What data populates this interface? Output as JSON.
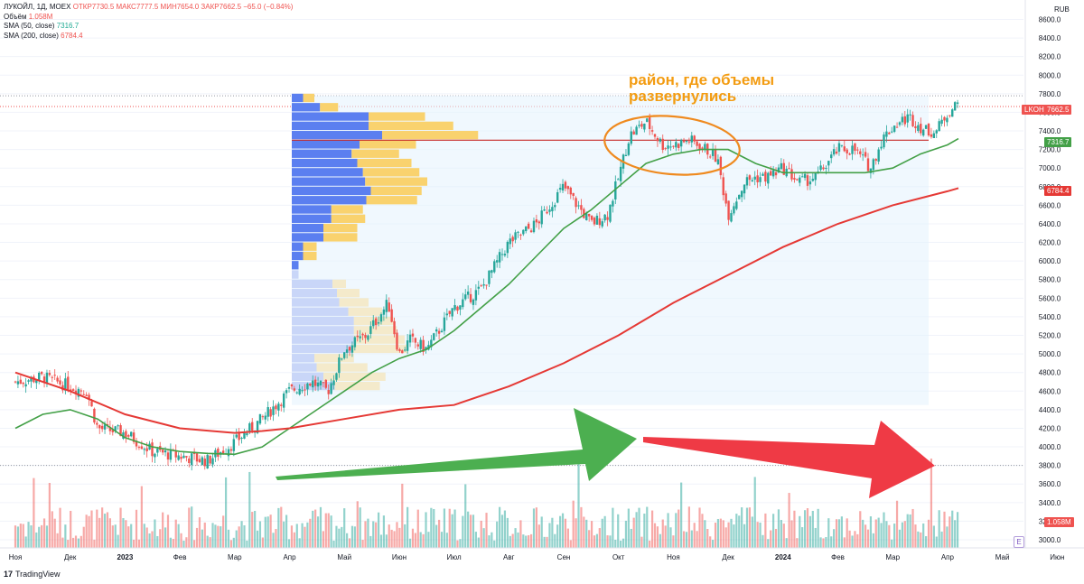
{
  "legend": {
    "symbol": "ЛУКОЙЛ, 1Д, MOEX",
    "ohlc": "ОТКР7730.5  МАКС7777.5  МИН7654.0  ЗАКР7662.5  −65.0 (−0.84%)",
    "volume_label": "Объём",
    "volume_value": "1.058M",
    "sma50_label": "SMA (50, close)",
    "sma50_value": "7316.7",
    "sma200_label": "SMA (200, close)",
    "sma200_value": "6784.4"
  },
  "currency": "RUB",
  "annotation": {
    "line1": "район, где объемы",
    "line2": "развернулись"
  },
  "branding": {
    "mark": "17",
    "name": "TradingView"
  },
  "e_button": "E",
  "price_labels": {
    "ticker": "LKOH",
    "last": "7662.5",
    "sma50": "7316.7",
    "sma200": "6784.4",
    "volume": "1.058M"
  },
  "colors": {
    "up": "#26a69a",
    "down": "#ef5350",
    "sma50": "#43a047",
    "sma200": "#e53935",
    "annotation": "#f39c12",
    "green_arrow": "#4caf50",
    "red_arrow": "#ef3a45",
    "profile_up": "#5b7ff0",
    "profile_down": "#f9d26e"
  },
  "chart_data": {
    "type": "candlestick",
    "title": "ЛУКОЙЛ, 1Д, MOEX",
    "y_axis": {
      "ticks": [
        3000,
        3200,
        3400,
        3600,
        3800,
        4000,
        4200,
        4400,
        4600,
        4800,
        5000,
        5200,
        5400,
        5600,
        5800,
        6000,
        6200,
        6400,
        6600,
        6800,
        7000,
        7200,
        7400,
        7600,
        7800,
        8000,
        8200,
        8400,
        8600
      ],
      "tick_labels": [
        "3000.0",
        "3200.0",
        "3400.0",
        "3600.0",
        "3800.0",
        "4000.0",
        "4200.0",
        "4400.0",
        "4600.0",
        "4800.0",
        "5000.0",
        "5200.0",
        "5400.0",
        "5600.0",
        "5800.0",
        "6000.0",
        "6200.0",
        "6400.0",
        "6600.0",
        "6800.0",
        "7000.0",
        "7200.0",
        "7400.0",
        "7600.0",
        "7800.0",
        "8000.0",
        "8200.0",
        "8400.0",
        "8600.0"
      ],
      "range": [
        2950,
        8750
      ]
    },
    "x_axis": {
      "labels": [
        "Ноя",
        "Дек",
        "2023",
        "Фев",
        "Мар",
        "Апр",
        "Май",
        "Июн",
        "Июл",
        "Авг",
        "Сен",
        "Окт",
        "Ноя",
        "Дек",
        "2024",
        "Фев",
        "Мар",
        "Апр",
        "Май",
        "Июн"
      ],
      "month_index": [
        0,
        1,
        2,
        3,
        4,
        5,
        6,
        7,
        8,
        9,
        10,
        11,
        12,
        13,
        14,
        15,
        16,
        17,
        18,
        19
      ]
    },
    "price_path": {
      "description": "approximate daily close by month index",
      "x": [
        0,
        0.5,
        1.0,
        1.3,
        1.5,
        2.0,
        2.5,
        3.0,
        3.5,
        4.0,
        4.5,
        5.0,
        5.4,
        5.7,
        6.0,
        6.4,
        6.8,
        7.0,
        7.2,
        7.5,
        8.0,
        8.5,
        9.0,
        9.5,
        10.0,
        10.5,
        10.8,
        11.0,
        11.2,
        11.5,
        11.8,
        12.0,
        12.3,
        12.6,
        12.8,
        13.0,
        13.3,
        13.5,
        13.7,
        14.0,
        14.3,
        14.6,
        15.0,
        15.3,
        15.6,
        15.8,
        16.0,
        16.3,
        16.6,
        16.8,
        17.0,
        17.2
      ],
      "y": [
        4700,
        4750,
        4650,
        4600,
        4200,
        4150,
        3950,
        3900,
        3850,
        4050,
        4300,
        4600,
        4700,
        4600,
        5050,
        5200,
        5550,
        5000,
        5150,
        5050,
        5500,
        5700,
        6200,
        6400,
        6800,
        6400,
        6500,
        6900,
        7350,
        7500,
        7250,
        7250,
        7300,
        7200,
        7100,
        6500,
        6850,
        6900,
        6900,
        7000,
        6850,
        6900,
        7200,
        7200,
        7000,
        7300,
        7450,
        7550,
        7400,
        7400,
        7600,
        7700
      ]
    },
    "series": [
      {
        "name": "SMA (50, close)",
        "x": [
          0,
          0.5,
          1.0,
          1.5,
          2.0,
          2.5,
          3.0,
          3.5,
          4.0,
          4.5,
          5.0,
          5.5,
          6.0,
          6.5,
          7.0,
          7.5,
          8.0,
          8.5,
          9.0,
          9.5,
          10.0,
          10.5,
          11.0,
          11.5,
          12.0,
          12.5,
          13.0,
          13.5,
          14.0,
          14.5,
          15.0,
          15.5,
          16.0,
          16.5,
          17.0,
          17.2
        ],
        "values": [
          4200,
          4350,
          4400,
          4300,
          4100,
          4000,
          3950,
          3930,
          3920,
          4000,
          4200,
          4400,
          4600,
          4800,
          4950,
          5050,
          5250,
          5500,
          5750,
          6050,
          6350,
          6550,
          6800,
          7050,
          7150,
          7200,
          7200,
          7050,
          6950,
          6950,
          6950,
          6950,
          7000,
          7150,
          7250,
          7316.7
        ]
      },
      {
        "name": "SMA (200, close)",
        "x": [
          0,
          1.0,
          2.0,
          3.0,
          4.0,
          4.5,
          5.0,
          6.0,
          7.0,
          8.0,
          9.0,
          10.0,
          11.0,
          12.0,
          13.0,
          14.0,
          15.0,
          16.0,
          17.0,
          17.2
        ],
        "values": [
          4800,
          4600,
          4350,
          4200,
          4150,
          4170,
          4200,
          4300,
          4400,
          4450,
          4650,
          4900,
          5200,
          5550,
          5850,
          6150,
          6400,
          6600,
          6750,
          6784.4
        ]
      }
    ],
    "volume_profile": {
      "price_levels": [
        7750,
        7650,
        7550,
        7450,
        7350,
        7250,
        7150,
        7050,
        6950,
        6850,
        6750,
        6650,
        6550,
        6450,
        6350,
        6250,
        6150,
        6050,
        5950,
        5850,
        5750,
        5650,
        5550,
        5450,
        5350,
        5250,
        5150,
        5050,
        4950,
        4850,
        4750,
        4650
      ],
      "up_volume": [
        10,
        25,
        68,
        68,
        80,
        60,
        53,
        58,
        63,
        65,
        70,
        66,
        35,
        35,
        28,
        28,
        10,
        10,
        6,
        6,
        36,
        40,
        42,
        50,
        55,
        55,
        55,
        53,
        20,
        22,
        28,
        38
      ],
      "down_volume": [
        10,
        16,
        50,
        75,
        85,
        50,
        42,
        48,
        50,
        55,
        45,
        45,
        28,
        30,
        30,
        30,
        12,
        12,
        0,
        0,
        12,
        20,
        26,
        30,
        35,
        38,
        45,
        50,
        35,
        45,
        55,
        40
      ]
    },
    "annotations": [
      {
        "type": "text",
        "text": "район, где объемы развернулись"
      },
      {
        "type": "ellipse",
        "around": "Oct-Dec 2023 peak, ~7200-7600"
      },
      {
        "type": "arrow",
        "color": "green",
        "direction": "rising"
      },
      {
        "type": "arrow",
        "color": "red",
        "direction": "falling"
      },
      {
        "type": "hline",
        "value": 7316.7,
        "color": "red"
      }
    ],
    "last": {
      "value": 7662.5,
      "sma50": 7316.7,
      "sma200": 6784.4,
      "volume": "1.058M"
    }
  }
}
